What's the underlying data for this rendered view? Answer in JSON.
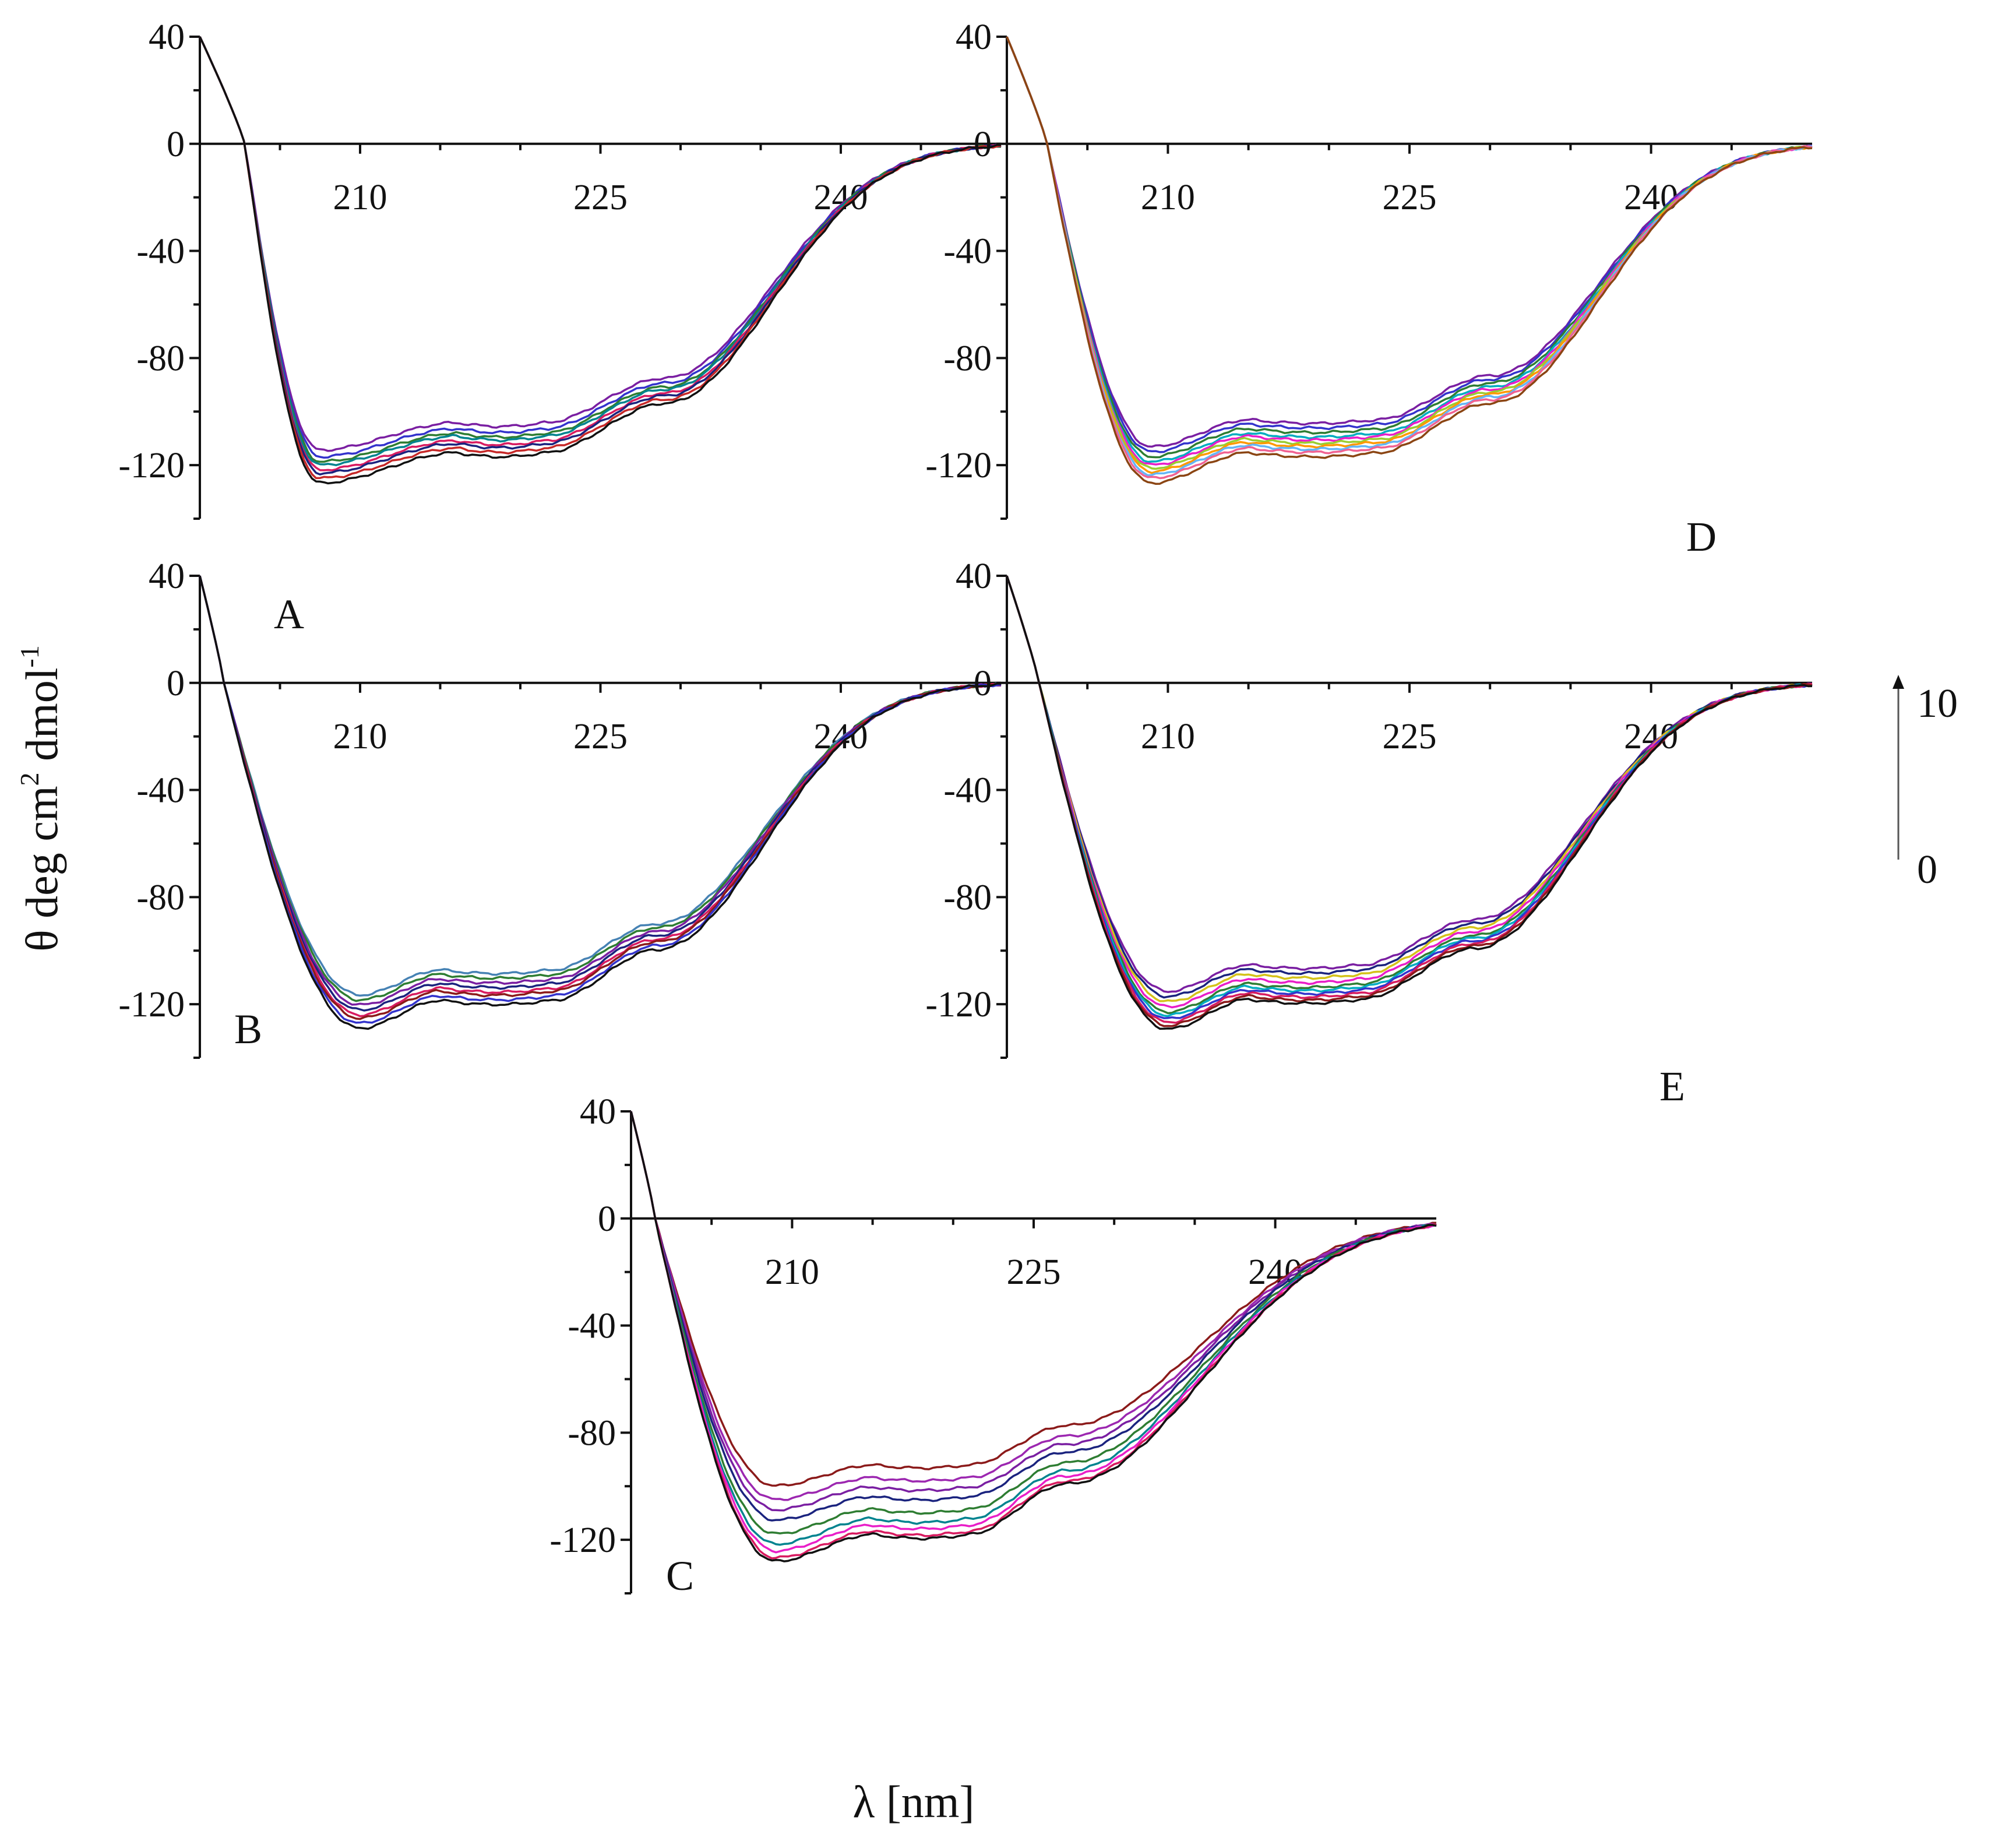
{
  "chart_data": {
    "type": "line",
    "ylabel_parts": [
      "θ deg cm",
      "2",
      " dmol",
      "-1"
    ],
    "xlabel": "λ [nm]",
    "scan_arrow": {
      "top": "10",
      "bottom": "0"
    },
    "panels": [
      {
        "id": "A",
        "label": "A",
        "xlim": [
          200,
          250
        ],
        "ylim": [
          -140,
          40
        ],
        "yticks": [
          40,
          0,
          -40,
          -80,
          -120
        ],
        "xticks": [
          210,
          225,
          240
        ],
        "params": {
          "Z": 202.8,
          "Mm": -123,
          "Pm": -112,
          "Tv": 207.5,
          "pl": 216,
          "pr": 221.5,
          "Pe": 229,
          "Ee": 243,
          "Ew": 9.5
        },
        "series": [
          {
            "color": "#7a1fa2",
            "scale": 0.93
          },
          {
            "color": "#3333cc",
            "scale": 0.95
          },
          {
            "color": "#2e7d32",
            "scale": 0.965
          },
          {
            "color": "#00838f",
            "scale": 0.975
          },
          {
            "color": "#d81b60",
            "scale": 0.99
          },
          {
            "color": "#1a237e",
            "scale": 1.0
          },
          {
            "color": "#c62828",
            "scale": 1.015
          },
          {
            "color": "#111111",
            "scale": 1.03
          }
        ]
      },
      {
        "id": "B",
        "label": "B",
        "xlim": [
          200,
          250
        ],
        "ylim": [
          -140,
          40
        ],
        "yticks": [
          40,
          0,
          -40,
          -80,
          -120
        ],
        "xticks": [
          210,
          225,
          240
        ],
        "params": {
          "Z": 201.5,
          "Mm": -124,
          "Pm": -114,
          "Tv": 210,
          "pl": 215,
          "pr": 222,
          "Pe": 228.5,
          "Ee": 243,
          "Ew": 9.5
        },
        "series": [
          {
            "color": "#4682b4",
            "scale": 0.94
          },
          {
            "color": "#2e7d32",
            "scale": 0.955
          },
          {
            "color": "#7a1fa2",
            "scale": 0.97
          },
          {
            "color": "#1a237e",
            "scale": 0.985
          },
          {
            "color": "#d81b60",
            "scale": 1.0
          },
          {
            "color": "#8b1a1a",
            "scale": 1.01
          },
          {
            "color": "#3333cc",
            "scale": 1.025
          },
          {
            "color": "#111111",
            "scale": 1.04
          }
        ]
      },
      {
        "id": "C",
        "label": "C",
        "xlim": [
          200,
          250
        ],
        "ylim": [
          -140,
          40
        ],
        "yticks": [
          40,
          0,
          -40,
          -80,
          -120
        ],
        "xticks": [
          210,
          225,
          240
        ],
        "params": {
          "Z": 201.5,
          "Mm": -128,
          "Pm": -118,
          "Tv": 209,
          "pl": 215,
          "pr": 221,
          "Pe": 227,
          "Ee": 241,
          "Ew": 12
        },
        "series": [
          {
            "color": "#8b1a1a",
            "scale": 0.78
          },
          {
            "color": "#9c27b0",
            "scale": 0.82
          },
          {
            "color": "#7a1fa2",
            "scale": 0.85
          },
          {
            "color": "#1a237e",
            "scale": 0.88
          },
          {
            "color": "#2e7d32",
            "scale": 0.92
          },
          {
            "color": "#00838f",
            "scale": 0.95
          },
          {
            "color": "#e91ec8",
            "scale": 0.97
          },
          {
            "color": "#d81b60",
            "scale": 0.99
          },
          {
            "color": "#111111",
            "scale": 1.0
          }
        ]
      },
      {
        "id": "D",
        "label": "D",
        "xlim": [
          200,
          250
        ],
        "ylim": [
          -140,
          40
        ],
        "yticks": [
          40,
          0,
          -40,
          -80,
          -120
        ],
        "xticks": [
          210,
          225,
          240
        ],
        "params": {
          "Z": 202.5,
          "Mm": -123,
          "Pm": -112,
          "Tv": 209,
          "pl": 215,
          "pr": 223,
          "Pe": 230,
          "Ee": 244,
          "Ew": 9.5
        },
        "series": [
          {
            "color": "#7a1fa2",
            "scale": 0.92
          },
          {
            "color": "#3333cc",
            "scale": 0.935
          },
          {
            "color": "#2e7d32",
            "scale": 0.95
          },
          {
            "color": "#00acc1",
            "scale": 0.965
          },
          {
            "color": "#e91ec8",
            "scale": 0.975
          },
          {
            "color": "#9acd32",
            "scale": 0.985
          },
          {
            "color": "#ff9800",
            "scale": 0.995
          },
          {
            "color": "#64b5f6",
            "scale": 1.005
          },
          {
            "color": "#f06292",
            "scale": 1.015
          },
          {
            "color": "#8b4513",
            "scale": 1.03
          }
        ]
      },
      {
        "id": "E",
        "label": "E",
        "xlim": [
          200,
          250
        ],
        "ylim": [
          -140,
          40
        ],
        "yticks": [
          40,
          0,
          -40,
          -80,
          -120
        ],
        "xticks": [
          210,
          225,
          240
        ],
        "params": {
          "Z": 202,
          "Mm": -128,
          "Pm": -117,
          "Tv": 210,
          "pl": 215,
          "pr": 222,
          "Pe": 229,
          "Ee": 244,
          "Ew": 9.5
        },
        "series": [
          {
            "color": "#7a1fa2",
            "scale": 0.9
          },
          {
            "color": "#1a237e",
            "scale": 0.915
          },
          {
            "color": "#d4c21a",
            "scale": 0.93
          },
          {
            "color": "#e91ec8",
            "scale": 0.945
          },
          {
            "color": "#2e7d32",
            "scale": 0.96
          },
          {
            "color": "#00acc1",
            "scale": 0.97
          },
          {
            "color": "#3333cc",
            "scale": 0.98
          },
          {
            "color": "#d81b60",
            "scale": 0.99
          },
          {
            "color": "#8b1a1a",
            "scale": 1.0
          },
          {
            "color": "#111111",
            "scale": 1.01
          }
        ]
      }
    ]
  }
}
